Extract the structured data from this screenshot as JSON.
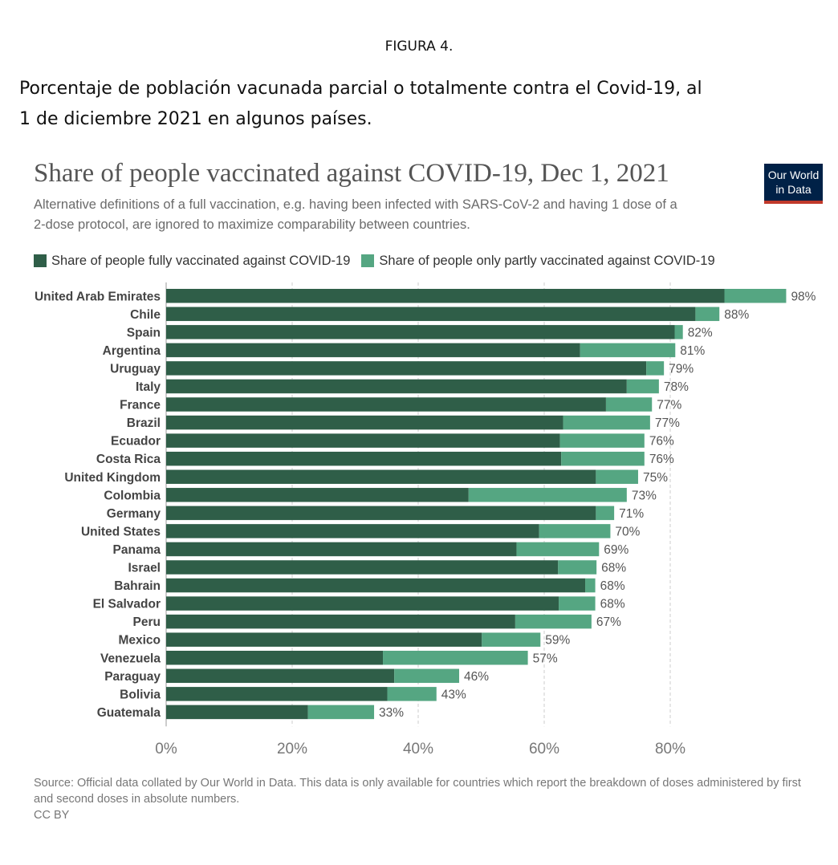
{
  "figure": {
    "label": "FIGURA 4.",
    "title_line1": "Porcentaje de población vacunada parcial o totalmente contra el Covid-19, al",
    "title_line2": "1 de diciembre 2021 en algunos países."
  },
  "logo": {
    "line1": "Our World",
    "line2": "in Data"
  },
  "footer": {
    "source": "Source: Official data collated by Our World in Data. This data is only available for countries which report the breakdown of doses administered by first and second doses in absolute numbers.",
    "license": "CC BY"
  },
  "colors": {
    "fully": "#2f5e48",
    "partly": "#55a682"
  },
  "chart_data": {
    "type": "bar",
    "orientation": "horizontal",
    "stacked": true,
    "title": "Share of people vaccinated against COVID-19, Dec 1, 2021",
    "subtitle_line1": "Alternative definitions of a full vaccination, e.g. having been infected with SARS-CoV-2 and having 1 dose of a",
    "subtitle_line2": "2-dose protocol, are ignored to maximize comparability between countries.",
    "legend_position": "top",
    "categories": [
      "United Arab Emirates",
      "Chile",
      "Spain",
      "Argentina",
      "Uruguay",
      "Italy",
      "France",
      "Brazil",
      "Ecuador",
      "Costa Rica",
      "United Kingdom",
      "Colombia",
      "Germany",
      "United States",
      "Panama",
      "Israel",
      "Bahrain",
      "El Salvador",
      "Peru",
      "Mexico",
      "Venezuela",
      "Paraguay",
      "Bolivia",
      "Guatemala"
    ],
    "series": [
      {
        "name": "Share of people fully vaccinated against COVID-19",
        "values": [
          88.6,
          84.0,
          80.7,
          65.7,
          76.2,
          73.1,
          69.8,
          63.0,
          62.5,
          62.7,
          68.2,
          48.0,
          68.2,
          59.2,
          55.6,
          62.2,
          66.5,
          62.3,
          55.4,
          50.1,
          34.4,
          36.2,
          35.1,
          22.5
        ]
      },
      {
        "name": "Share of people only partly vaccinated against COVID-19",
        "values": [
          9.8,
          3.8,
          1.3,
          15.1,
          2.8,
          5.1,
          7.3,
          13.8,
          13.4,
          13.2,
          6.7,
          25.1,
          2.9,
          11.3,
          13.1,
          6.1,
          1.6,
          5.8,
          12.1,
          9.3,
          23.0,
          10.3,
          7.8,
          10.5
        ]
      }
    ],
    "totals_labels": [
      "98%",
      "88%",
      "82%",
      "81%",
      "79%",
      "78%",
      "77%",
      "77%",
      "76%",
      "76%",
      "75%",
      "73%",
      "71%",
      "70%",
      "69%",
      "68%",
      "68%",
      "68%",
      "67%",
      "59%",
      "57%",
      "46%",
      "43%",
      "33%"
    ],
    "xlim": [
      0,
      100
    ],
    "xticks": [
      0,
      20,
      40,
      60,
      80
    ],
    "xtick_labels": [
      "0%",
      "20%",
      "40%",
      "60%",
      "80%"
    ],
    "grid": "vertical dashed"
  }
}
